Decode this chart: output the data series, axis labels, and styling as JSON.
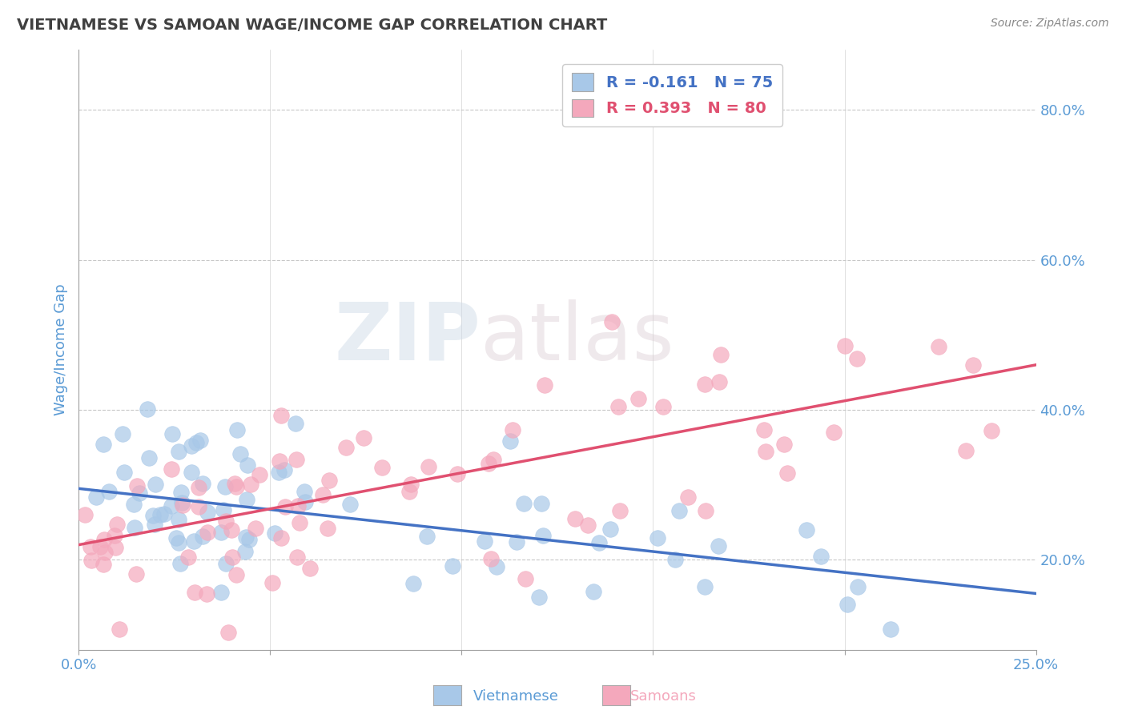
{
  "title": "VIETNAMESE VS SAMOAN WAGE/INCOME GAP CORRELATION CHART",
  "source_text": "Source: ZipAtlas.com",
  "ylabel": "Wage/Income Gap",
  "xlim": [
    0.0,
    0.25
  ],
  "ylim": [
    0.08,
    0.88
  ],
  "xticks": [
    0.0,
    0.05,
    0.1,
    0.15,
    0.2,
    0.25
  ],
  "xticklabels": [
    "0.0%",
    "",
    "",
    "",
    "",
    "25.0%"
  ],
  "yticks": [
    0.2,
    0.4,
    0.6,
    0.8
  ],
  "yticklabels": [
    "20.0%",
    "40.0%",
    "60.0%",
    "80.0%"
  ],
  "vietnamese_color": "#a8c8e8",
  "samoan_color": "#f4a8bc",
  "trend_viet_color": "#4472c4",
  "trend_samoan_color": "#e05070",
  "legend_r_viet": "R = -0.161",
  "legend_n_viet": "N = 75",
  "legend_r_samoan": "R = 0.393",
  "legend_n_samoan": "N = 80",
  "title_color": "#404040",
  "tick_label_color": "#5b9bd5",
  "watermark_text": "ZIPatlas",
  "background_color": "#ffffff",
  "grid_color": "#c8c8c8",
  "viet_R": -0.161,
  "viet_N": 75,
  "samoan_R": 0.393,
  "samoan_N": 80,
  "viet_trend_y0": 0.295,
  "viet_trend_y1": 0.155,
  "samoan_trend_y0": 0.22,
  "samoan_trend_y1": 0.46
}
